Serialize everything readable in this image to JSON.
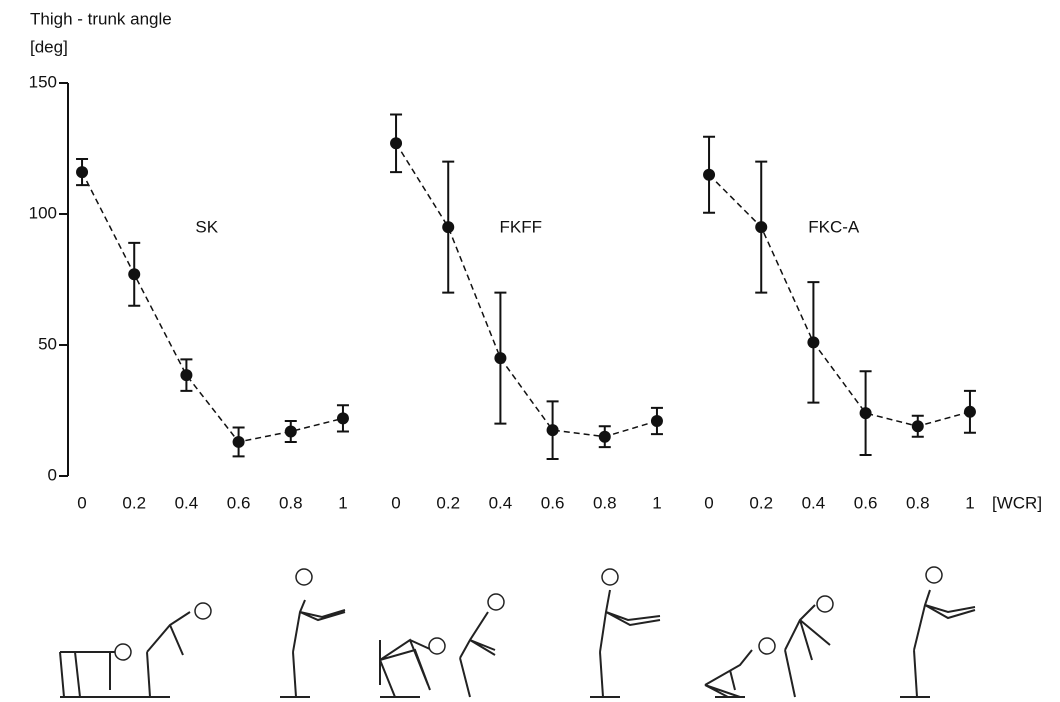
{
  "chart_data": [
    {
      "type": "line",
      "title": "SK",
      "y_label": "Thigh - trunk angle",
      "y_unit": "[deg]",
      "x": [
        0,
        0.2,
        0.4,
        0.6,
        0.8,
        1
      ],
      "values": [
        116,
        77,
        38.5,
        13,
        17,
        22
      ],
      "errors": [
        5,
        12,
        6,
        5.5,
        4,
        5
      ],
      "xlim": [
        -0.05,
        1.05
      ],
      "xticks": [
        0,
        0.2,
        0.4,
        0.6,
        0.8,
        1
      ],
      "ylim": [
        0,
        150
      ],
      "yticks": [
        0,
        50,
        100,
        150
      ],
      "color": "#111"
    },
    {
      "type": "line",
      "title": "FKFF",
      "x": [
        0,
        0.2,
        0.4,
        0.6,
        0.8,
        1
      ],
      "values": [
        127,
        95,
        45,
        17.5,
        15,
        21
      ],
      "errors": [
        11,
        25,
        25,
        11,
        4,
        5
      ],
      "xlim": [
        -0.05,
        1.05
      ],
      "xticks": [
        0,
        0.2,
        0.4,
        0.6,
        0.8,
        1
      ],
      "ylim": [
        0,
        150
      ],
      "color": "#111"
    },
    {
      "type": "line",
      "title": "FKC-A",
      "x_label": "[WCR]",
      "x": [
        0,
        0.2,
        0.4,
        0.6,
        0.8,
        1
      ],
      "values": [
        115,
        95,
        51,
        24,
        19,
        24.5
      ],
      "errors": [
        14.5,
        25,
        23,
        16,
        4,
        8
      ],
      "xlim": [
        -0.05,
        1.05
      ],
      "xticks": [
        0,
        0.2,
        0.4,
        0.6,
        0.8,
        1
      ],
      "ylim": [
        0,
        150
      ],
      "color": "#111"
    }
  ]
}
